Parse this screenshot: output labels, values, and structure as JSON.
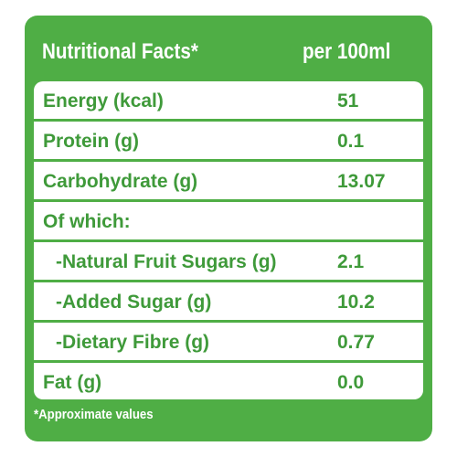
{
  "header": {
    "title": "Nutritional Facts*",
    "per": "per 100ml"
  },
  "rows": [
    {
      "label": "Energy (kcal)",
      "value": "51"
    },
    {
      "label": "Protein (g)",
      "value": "0.1"
    },
    {
      "label": "Carbohydrate (g)",
      "value": "13.07"
    },
    {
      "label": "Of which:",
      "value": ""
    },
    {
      "label": "-Natural Fruit Sugars (g)",
      "value": "2.1"
    },
    {
      "label": "-Added Sugar (g)",
      "value": "10.2"
    },
    {
      "label": "-Dietary Fibre (g)",
      "value": "0.77"
    },
    {
      "label": "Fat (g)",
      "value": "0.0"
    }
  ],
  "footnote": "*Approximate values",
  "colors": {
    "panel_green": "#4fae45",
    "text_green": "#3f9a3a",
    "background": "#ffffff"
  }
}
